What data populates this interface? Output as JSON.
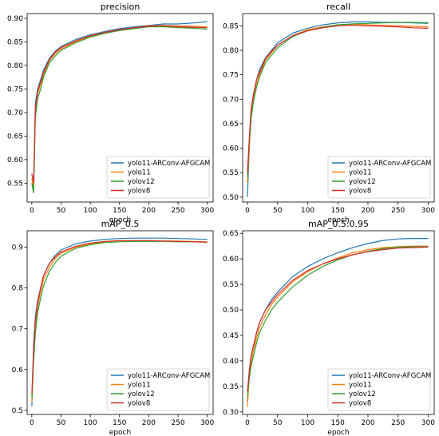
{
  "chart_data": [
    {
      "type": "line",
      "title": "precision",
      "xlabel": "epoch",
      "ylabel": "",
      "xlim": [
        -8,
        310
      ],
      "ylim": [
        0.51,
        0.91
      ],
      "xticks": [
        0,
        50,
        100,
        150,
        200,
        250,
        300
      ],
      "yticks": [
        0.55,
        0.6,
        0.65,
        0.7,
        0.75,
        0.8,
        0.85,
        0.9
      ],
      "ytick_format": 2,
      "legend": "bottom-right",
      "series": [
        {
          "name": "yolo11-ARConv-AFGCAM",
          "color": "#1f77b4",
          "x": [
            0,
            3,
            6,
            10,
            15,
            20,
            30,
            40,
            50,
            75,
            100,
            125,
            150,
            175,
            200,
            225,
            250,
            275,
            300
          ],
          "y": [
            0.55,
            0.53,
            0.72,
            0.75,
            0.77,
            0.79,
            0.815,
            0.83,
            0.84,
            0.855,
            0.865,
            0.872,
            0.878,
            0.882,
            0.885,
            0.888,
            0.888,
            0.89,
            0.893
          ]
        },
        {
          "name": "yolo11",
          "color": "#ff7f0e",
          "x": [
            0,
            3,
            6,
            10,
            15,
            20,
            30,
            40,
            50,
            75,
            100,
            125,
            150,
            175,
            200,
            225,
            250,
            275,
            300
          ],
          "y": [
            0.56,
            0.54,
            0.7,
            0.74,
            0.76,
            0.78,
            0.81,
            0.825,
            0.835,
            0.85,
            0.862,
            0.87,
            0.876,
            0.88,
            0.884,
            0.885,
            0.884,
            0.883,
            0.882
          ]
        },
        {
          "name": "yolov12",
          "color": "#2ca02c",
          "x": [
            0,
            3,
            6,
            10,
            15,
            20,
            30,
            40,
            50,
            75,
            100,
            125,
            150,
            175,
            200,
            225,
            250,
            275,
            300
          ],
          "y": [
            0.55,
            0.53,
            0.69,
            0.73,
            0.75,
            0.775,
            0.805,
            0.82,
            0.832,
            0.848,
            0.86,
            0.868,
            0.874,
            0.878,
            0.882,
            0.882,
            0.88,
            0.879,
            0.877
          ]
        },
        {
          "name": "yolov8",
          "color": "#d62728",
          "x": [
            0,
            3,
            6,
            10,
            15,
            20,
            30,
            40,
            50,
            75,
            100,
            125,
            150,
            175,
            200,
            225,
            250,
            275,
            300
          ],
          "y": [
            0.57,
            0.55,
            0.71,
            0.745,
            0.765,
            0.785,
            0.812,
            0.828,
            0.838,
            0.852,
            0.863,
            0.87,
            0.876,
            0.88,
            0.883,
            0.884,
            0.882,
            0.881,
            0.88
          ]
        }
      ]
    },
    {
      "type": "line",
      "title": "recall",
      "xlabel": "epoch",
      "ylabel": "",
      "xlim": [
        -8,
        310
      ],
      "ylim": [
        0.49,
        0.875
      ],
      "xticks": [
        0,
        50,
        100,
        150,
        200,
        250,
        300
      ],
      "yticks": [
        0.5,
        0.55,
        0.6,
        0.65,
        0.7,
        0.75,
        0.8,
        0.85
      ],
      "ytick_format": 2,
      "legend": "bottom-right",
      "series": [
        {
          "name": "yolo11-ARConv-AFGCAM",
          "color": "#1f77b4",
          "x": [
            0,
            3,
            6,
            10,
            15,
            20,
            30,
            40,
            50,
            75,
            100,
            125,
            150,
            175,
            200,
            225,
            250,
            275,
            300
          ],
          "y": [
            0.5,
            0.6,
            0.68,
            0.71,
            0.74,
            0.76,
            0.785,
            0.8,
            0.815,
            0.835,
            0.845,
            0.852,
            0.856,
            0.858,
            0.858,
            0.857,
            0.857,
            0.856,
            0.855
          ]
        },
        {
          "name": "yolo11",
          "color": "#ff7f0e",
          "x": [
            0,
            3,
            6,
            10,
            15,
            20,
            30,
            40,
            50,
            75,
            100,
            125,
            150,
            175,
            200,
            225,
            250,
            275,
            300
          ],
          "y": [
            0.53,
            0.6,
            0.67,
            0.7,
            0.73,
            0.75,
            0.78,
            0.795,
            0.81,
            0.83,
            0.842,
            0.848,
            0.852,
            0.853,
            0.852,
            0.851,
            0.85,
            0.849,
            0.848
          ]
        },
        {
          "name": "yolov12",
          "color": "#2ca02c",
          "x": [
            0,
            3,
            6,
            10,
            15,
            20,
            30,
            40,
            50,
            75,
            100,
            125,
            150,
            175,
            200,
            225,
            250,
            275,
            300
          ],
          "y": [
            0.54,
            0.61,
            0.66,
            0.695,
            0.725,
            0.745,
            0.775,
            0.79,
            0.805,
            0.828,
            0.84,
            0.847,
            0.852,
            0.854,
            0.855,
            0.856,
            0.857,
            0.857,
            0.856
          ]
        },
        {
          "name": "yolov8",
          "color": "#d62728",
          "x": [
            0,
            3,
            6,
            10,
            15,
            20,
            30,
            40,
            50,
            75,
            100,
            125,
            150,
            175,
            200,
            225,
            250,
            275,
            300
          ],
          "y": [
            0.55,
            0.62,
            0.68,
            0.71,
            0.74,
            0.755,
            0.783,
            0.798,
            0.81,
            0.83,
            0.84,
            0.846,
            0.85,
            0.851,
            0.85,
            0.849,
            0.848,
            0.846,
            0.845
          ]
        }
      ]
    },
    {
      "type": "line",
      "title": "mAP_0.5",
      "xlabel": "epoch",
      "ylabel": "",
      "xlim": [
        -8,
        310
      ],
      "ylim": [
        0.49,
        0.94
      ],
      "xticks": [
        0,
        50,
        100,
        150,
        200,
        250,
        300
      ],
      "yticks": [
        0.5,
        0.6,
        0.7,
        0.8,
        0.9
      ],
      "ytick_format": 1,
      "legend": "bottom-right",
      "series": [
        {
          "name": "yolo11-ARConv-AFGCAM",
          "color": "#1f77b4",
          "x": [
            0,
            3,
            6,
            10,
            15,
            20,
            30,
            40,
            50,
            75,
            100,
            125,
            150,
            175,
            200,
            225,
            250,
            275,
            300
          ],
          "y": [
            0.51,
            0.66,
            0.73,
            0.77,
            0.8,
            0.83,
            0.86,
            0.88,
            0.893,
            0.908,
            0.915,
            0.919,
            0.921,
            0.922,
            0.922,
            0.922,
            0.921,
            0.92,
            0.919
          ]
        },
        {
          "name": "yolo11",
          "color": "#ff7f0e",
          "x": [
            0,
            3,
            6,
            10,
            15,
            20,
            30,
            40,
            50,
            75,
            100,
            125,
            150,
            175,
            200,
            225,
            250,
            275,
            300
          ],
          "y": [
            0.52,
            0.64,
            0.71,
            0.755,
            0.79,
            0.82,
            0.85,
            0.872,
            0.885,
            0.9,
            0.908,
            0.913,
            0.915,
            0.916,
            0.916,
            0.915,
            0.915,
            0.914,
            0.913
          ]
        },
        {
          "name": "yolov12",
          "color": "#2ca02c",
          "x": [
            0,
            3,
            6,
            10,
            15,
            20,
            30,
            40,
            50,
            75,
            100,
            125,
            150,
            175,
            200,
            225,
            250,
            275,
            300
          ],
          "y": [
            0.53,
            0.62,
            0.69,
            0.74,
            0.775,
            0.805,
            0.84,
            0.862,
            0.878,
            0.897,
            0.906,
            0.911,
            0.913,
            0.914,
            0.914,
            0.914,
            0.913,
            0.913,
            0.912
          ]
        },
        {
          "name": "yolov8",
          "color": "#d62728",
          "x": [
            0,
            3,
            6,
            10,
            15,
            20,
            30,
            40,
            50,
            75,
            100,
            125,
            150,
            175,
            200,
            225,
            250,
            275,
            300
          ],
          "y": [
            0.54,
            0.65,
            0.72,
            0.765,
            0.8,
            0.83,
            0.86,
            0.876,
            0.888,
            0.902,
            0.91,
            0.914,
            0.916,
            0.916,
            0.916,
            0.915,
            0.914,
            0.913,
            0.912
          ]
        }
      ]
    },
    {
      "type": "line",
      "title": "mAP_0.5:0.95",
      "xlabel": "epoch",
      "ylabel": "",
      "xlim": [
        -8,
        310
      ],
      "ylim": [
        0.295,
        0.655
      ],
      "xticks": [
        0,
        50,
        100,
        150,
        200,
        250,
        300
      ],
      "yticks": [
        0.3,
        0.35,
        0.4,
        0.45,
        0.5,
        0.55,
        0.6,
        0.65
      ],
      "ytick_format": 2,
      "legend": "bottom-right",
      "series": [
        {
          "name": "yolo11-ARConv-AFGCAM",
          "color": "#1f77b4",
          "x": [
            0,
            3,
            6,
            10,
            15,
            20,
            30,
            40,
            50,
            75,
            100,
            125,
            150,
            175,
            200,
            225,
            250,
            275,
            300
          ],
          "y": [
            0.32,
            0.38,
            0.41,
            0.43,
            0.455,
            0.475,
            0.5,
            0.52,
            0.535,
            0.565,
            0.585,
            0.6,
            0.612,
            0.622,
            0.63,
            0.636,
            0.639,
            0.64,
            0.64
          ]
        },
        {
          "name": "yolo11",
          "color": "#ff7f0e",
          "x": [
            0,
            3,
            6,
            10,
            15,
            20,
            30,
            40,
            50,
            75,
            100,
            125,
            150,
            175,
            200,
            225,
            250,
            275,
            300
          ],
          "y": [
            0.31,
            0.37,
            0.4,
            0.42,
            0.445,
            0.465,
            0.49,
            0.51,
            0.525,
            0.555,
            0.575,
            0.59,
            0.602,
            0.612,
            0.618,
            0.622,
            0.624,
            0.625,
            0.625
          ]
        },
        {
          "name": "yolov12",
          "color": "#2ca02c",
          "x": [
            0,
            3,
            6,
            10,
            15,
            20,
            30,
            40,
            50,
            75,
            100,
            125,
            150,
            175,
            200,
            225,
            250,
            275,
            300
          ],
          "y": [
            0.33,
            0.365,
            0.39,
            0.41,
            0.435,
            0.455,
            0.48,
            0.5,
            0.515,
            0.545,
            0.568,
            0.585,
            0.598,
            0.608,
            0.615,
            0.62,
            0.623,
            0.624,
            0.624
          ]
        },
        {
          "name": "yolov8",
          "color": "#d62728",
          "x": [
            0,
            3,
            6,
            10,
            15,
            20,
            30,
            40,
            50,
            75,
            100,
            125,
            150,
            175,
            200,
            225,
            250,
            275,
            300
          ],
          "y": [
            0.34,
            0.38,
            0.41,
            0.43,
            0.455,
            0.475,
            0.5,
            0.515,
            0.53,
            0.558,
            0.577,
            0.59,
            0.6,
            0.608,
            0.614,
            0.618,
            0.621,
            0.622,
            0.623
          ]
        }
      ]
    }
  ]
}
